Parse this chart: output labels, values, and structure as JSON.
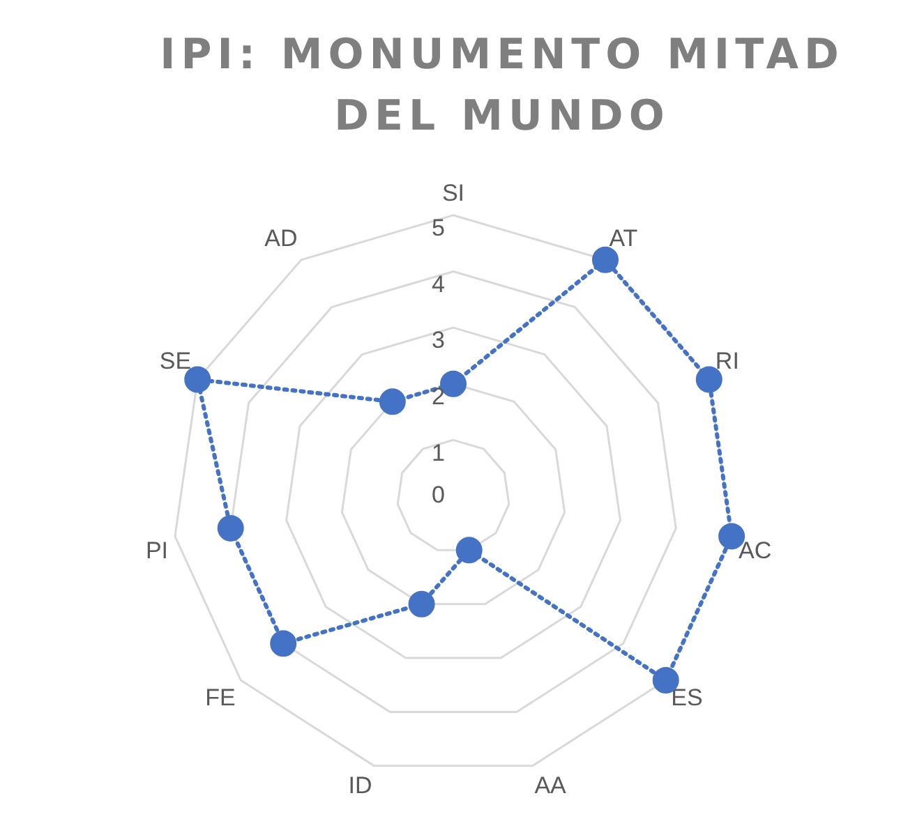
{
  "chart_data": {
    "type": "radar",
    "title": "IPI: MONUMENTO MITAD DEL MUNDO",
    "categories": [
      "SI",
      "AT",
      "RI",
      "AC",
      "ES",
      "AA",
      "ID",
      "FE",
      "PI",
      "SE",
      "AD"
    ],
    "series": [
      {
        "color": "#4472c4",
        "values": [
          2,
          5,
          5,
          5,
          5,
          1,
          2,
          4,
          4,
          5,
          2
        ]
      }
    ],
    "ylim": [
      0,
      5
    ],
    "yticks": [
      0,
      1,
      2,
      3,
      4,
      5
    ],
    "grid": true,
    "legend": false,
    "marker": "circle",
    "line_style": "dotted"
  }
}
